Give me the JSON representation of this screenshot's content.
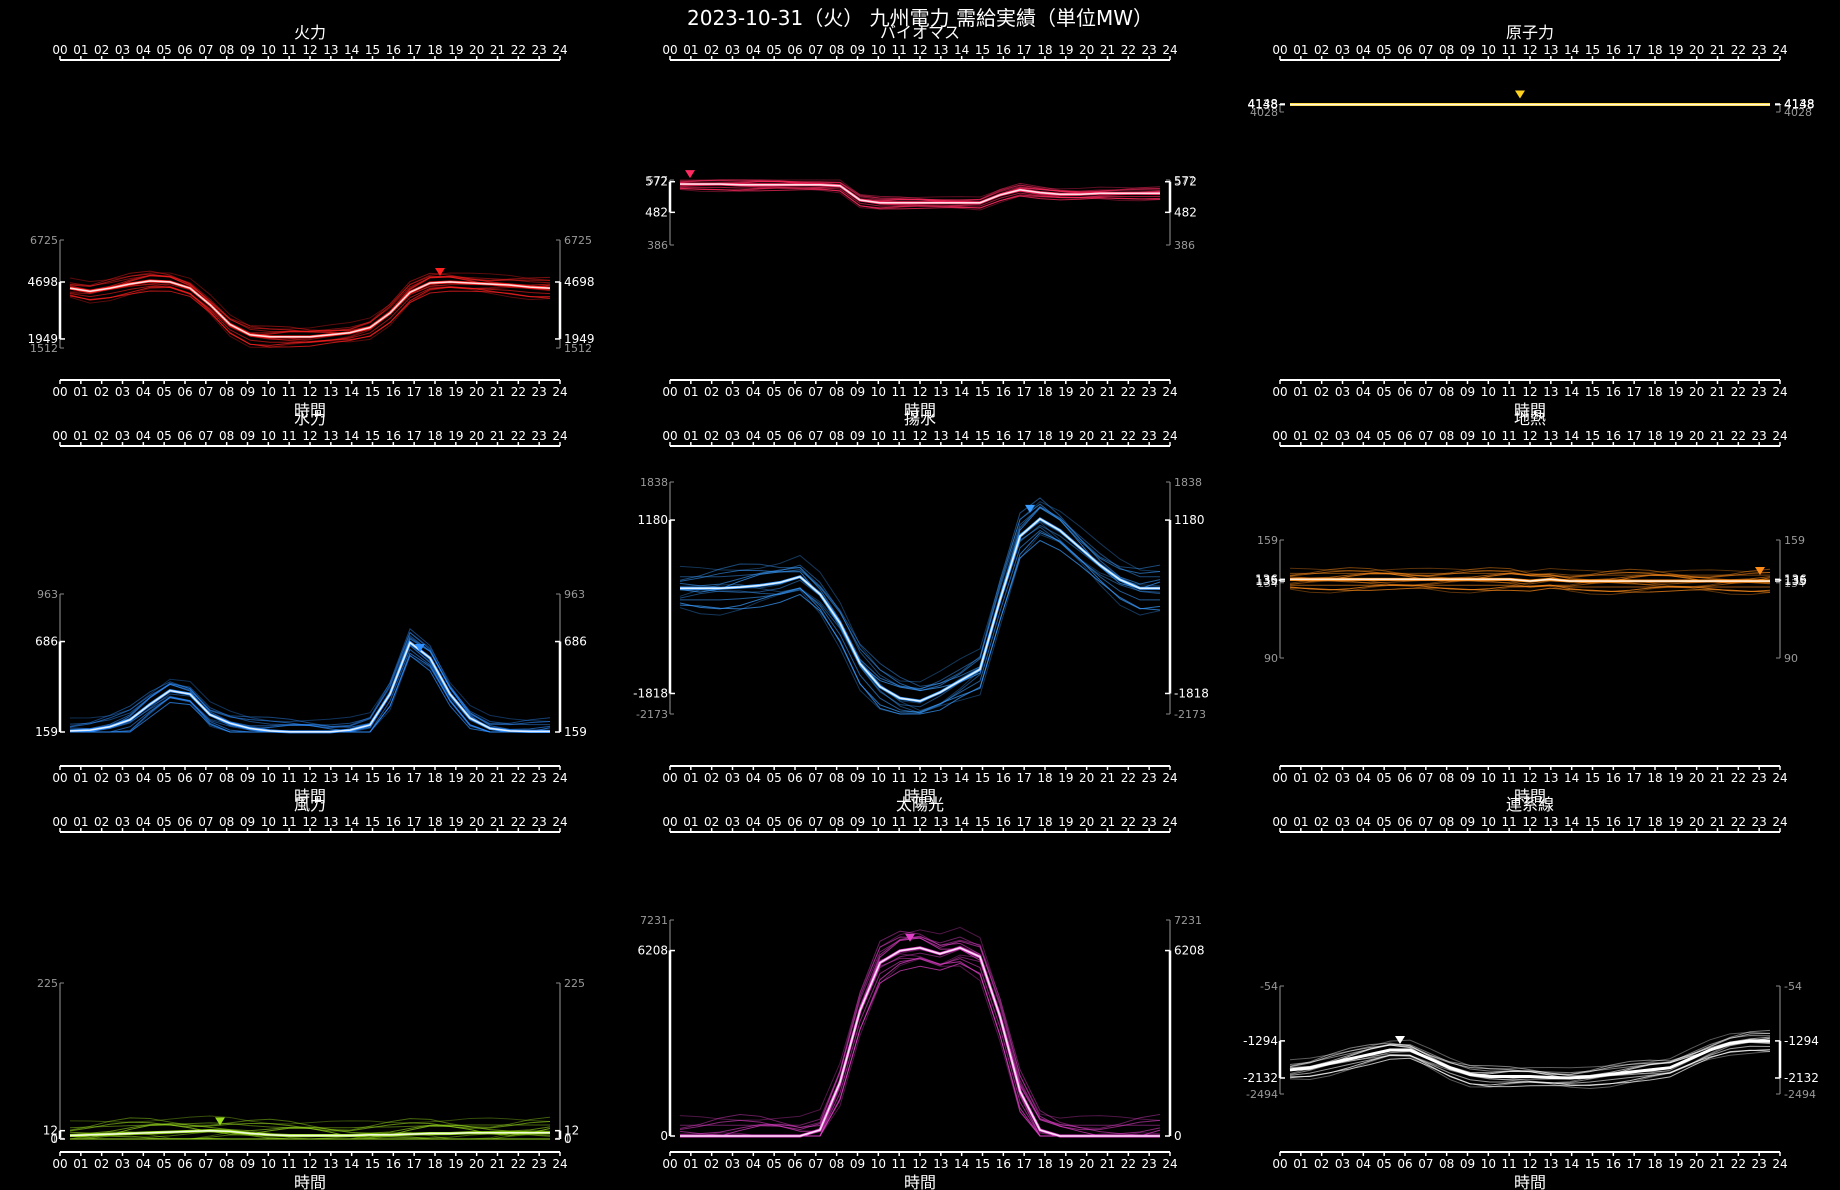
{
  "title": "2023-10-31（火） 九州電力 需給実績（単位MW）",
  "x_label": "時間",
  "hours": [
    "00",
    "01",
    "02",
    "03",
    "04",
    "05",
    "06",
    "07",
    "08",
    "09",
    "10",
    "11",
    "12",
    "13",
    "14",
    "15",
    "16",
    "17",
    "18",
    "19",
    "20",
    "21",
    "22",
    "23",
    "24"
  ],
  "chart_data": [
    {
      "type": "line",
      "title": "火力",
      "color": "#ff2020",
      "ylim": [
        1512,
        6725
      ],
      "y_ticks_bright": [
        4698,
        1949
      ],
      "y_ticks_dim": [
        6725,
        1512
      ],
      "marker_hour": 18.5,
      "x": [
        0,
        1,
        2,
        3,
        4,
        5,
        6,
        7,
        8,
        9,
        10,
        11,
        12,
        13,
        14,
        15,
        16,
        17,
        18,
        19,
        20,
        21,
        22,
        23,
        24
      ],
      "series": [
        {
          "values": [
            4400,
            4250,
            4400,
            4600,
            4750,
            4700,
            4400,
            3600,
            2650,
            2150,
            2050,
            2050,
            2050,
            2150,
            2250,
            2500,
            3200,
            4200,
            4650,
            4700,
            4650,
            4600,
            4550,
            4450,
            4400
          ]
        }
      ]
    },
    {
      "type": "line",
      "title": "バイオマス",
      "color": "#ff2a60",
      "ylim": [
        386,
        577
      ],
      "y_ticks_bright": [
        572,
        482
      ],
      "y_ticks_dim": [
        577,
        386
      ],
      "marker_hour": 0.5,
      "x": [
        0,
        1,
        2,
        3,
        4,
        5,
        6,
        7,
        8,
        9,
        10,
        11,
        12,
        13,
        14,
        15,
        16,
        17,
        18,
        19,
        20,
        21,
        22,
        23,
        24
      ],
      "series": [
        {
          "values": [
            565,
            565,
            565,
            563,
            563,
            563,
            563,
            563,
            560,
            518,
            510,
            510,
            510,
            510,
            510,
            510,
            533,
            548,
            540,
            535,
            535,
            538,
            538,
            538,
            538
          ]
        }
      ]
    },
    {
      "type": "line",
      "title": "原子力",
      "color": "#ffd21f",
      "ylim": [
        4028,
        4148
      ],
      "y_ticks_bright": [
        4148,
        4138
      ],
      "y_ticks_dim": [
        4028
      ],
      "marker_hour": 11.5,
      "x": [
        0,
        1,
        2,
        3,
        4,
        5,
        6,
        7,
        8,
        9,
        10,
        11,
        12,
        13,
        14,
        15,
        16,
        17,
        18,
        19,
        20,
        21,
        22,
        23,
        24
      ],
      "series": [
        {
          "values": [
            4140,
            4140,
            4140,
            4140,
            4140,
            4140,
            4140,
            4140,
            4140,
            4140,
            4140,
            4140,
            4140,
            4140,
            4140,
            4140,
            4140,
            4140,
            4140,
            4140,
            4140,
            4140,
            4140,
            4140,
            4140
          ]
        }
      ]
    },
    {
      "type": "line",
      "title": "水力",
      "color": "#2f8fff",
      "ylim": [
        159,
        963
      ],
      "y_ticks_bright": [
        686,
        159
      ],
      "y_ticks_dim": [
        963
      ],
      "marker_hour": 17.5,
      "x": [
        0,
        1,
        2,
        3,
        4,
        5,
        6,
        7,
        8,
        9,
        10,
        11,
        12,
        13,
        14,
        15,
        16,
        17,
        18,
        19,
        20,
        21,
        22,
        23,
        24
      ],
      "series": [
        {
          "values": [
            165,
            170,
            190,
            230,
            320,
            400,
            380,
            260,
            210,
            180,
            165,
            160,
            160,
            160,
            170,
            200,
            380,
            680,
            590,
            380,
            240,
            180,
            165,
            162,
            162
          ]
        }
      ]
    },
    {
      "type": "line",
      "title": "揚水",
      "color": "#3a9cff",
      "ylim": [
        -2173,
        1838
      ],
      "y_ticks_bright": [
        1180,
        -1818
      ],
      "y_ticks_dim": [
        1838,
        -2173
      ],
      "marker_hour": 17.5,
      "x": [
        0,
        1,
        2,
        3,
        4,
        5,
        6,
        7,
        8,
        9,
        10,
        11,
        12,
        13,
        14,
        15,
        16,
        17,
        18,
        19,
        20,
        21,
        22,
        23,
        24
      ],
      "series": [
        {
          "values": [
            0,
            0,
            0,
            20,
            50,
            100,
            200,
            -100,
            -600,
            -1300,
            -1700,
            -1900,
            -1950,
            -1800,
            -1600,
            -1400,
            -200,
            900,
            1200,
            1000,
            700,
            400,
            150,
            0,
            0
          ]
        }
      ]
    },
    {
      "type": "line",
      "title": "地熱",
      "color": "#ff8c1a",
      "ylim": [
        90,
        159
      ],
      "y_ticks_bright": [
        136,
        135
      ],
      "y_ticks_dim": [
        159,
        134,
        90
      ],
      "marker_hour": 23.5,
      "x": [
        0,
        1,
        2,
        3,
        4,
        5,
        6,
        7,
        8,
        9,
        10,
        11,
        12,
        13,
        14,
        15,
        16,
        17,
        18,
        19,
        20,
        21,
        22,
        23,
        24
      ],
      "series": [
        {
          "values": [
            136,
            136,
            136,
            136,
            136,
            136,
            136,
            136,
            136,
            136,
            136,
            136,
            135,
            136,
            135,
            135,
            135,
            135,
            135,
            135,
            135,
            135,
            135,
            135,
            135
          ]
        }
      ]
    },
    {
      "type": "line",
      "title": "風力",
      "color": "#9adc1e",
      "ylim": [
        0,
        225
      ],
      "y_ticks_bright": [
        12,
        0
      ],
      "y_ticks_dim": [
        225,
        1
      ],
      "marker_hour": 7.5,
      "x": [
        0,
        1,
        2,
        3,
        4,
        5,
        6,
        7,
        8,
        9,
        10,
        11,
        12,
        13,
        14,
        15,
        16,
        17,
        18,
        19,
        20,
        21,
        22,
        23,
        24
      ],
      "series": [
        {
          "values": [
            5,
            6,
            7,
            8,
            9,
            10,
            11,
            12,
            11,
            8,
            6,
            5,
            5,
            5,
            5,
            6,
            6,
            7,
            8,
            8,
            9,
            9,
            9,
            9,
            9
          ]
        }
      ]
    },
    {
      "type": "line",
      "title": "太陽光",
      "color": "#e040c8",
      "ylim": [
        0,
        7231
      ],
      "y_ticks_bright": [
        6208,
        0
      ],
      "y_ticks_dim": [
        7231
      ],
      "marker_hour": 11.5,
      "x": [
        0,
        1,
        2,
        3,
        4,
        5,
        6,
        7,
        8,
        9,
        10,
        11,
        12,
        13,
        14,
        15,
        16,
        17,
        18,
        19,
        20,
        21,
        22,
        23,
        24
      ],
      "series": [
        {
          "values": [
            0,
            0,
            0,
            0,
            0,
            0,
            0,
            200,
            1800,
            4200,
            5800,
            6200,
            6300,
            6100,
            6300,
            6000,
            4000,
            1500,
            200,
            0,
            0,
            0,
            0,
            0,
            0
          ]
        }
      ]
    },
    {
      "type": "line",
      "title": "連系線",
      "color": "#ffffff",
      "ylim": [
        -2494,
        -54
      ],
      "y_ticks_bright": [
        -1294,
        -2132
      ],
      "y_ticks_dim": [
        -54,
        -2494
      ],
      "marker_hour": 5.5,
      "x": [
        0,
        1,
        2,
        3,
        4,
        5,
        6,
        7,
        8,
        9,
        10,
        11,
        12,
        13,
        14,
        15,
        16,
        17,
        18,
        19,
        20,
        21,
        22,
        23,
        24
      ],
      "series": [
        {
          "values": [
            -1950,
            -1900,
            -1800,
            -1700,
            -1600,
            -1500,
            -1500,
            -1700,
            -1900,
            -2050,
            -2100,
            -2100,
            -2100,
            -2120,
            -2132,
            -2100,
            -2050,
            -2000,
            -1950,
            -1900,
            -1700,
            -1500,
            -1350,
            -1294,
            -1300
          ]
        }
      ]
    }
  ]
}
